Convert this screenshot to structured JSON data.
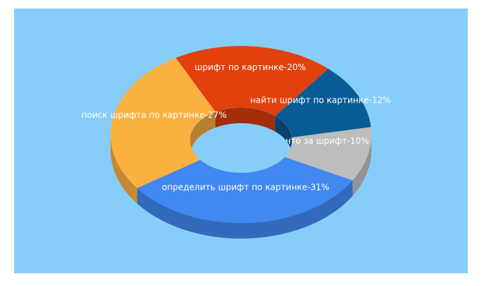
{
  "chart_data": {
    "type": "donut3d",
    "categories": [
      "шрифт по картинке-20%",
      "найти шрифт по картинке-12%",
      "что за шрифт-10%",
      "определить шрифт по картинке-31%",
      "поиск шрифта по картинке-27%"
    ],
    "values": [
      20,
      12,
      10,
      31,
      27
    ],
    "colors": [
      "#e2400c",
      "#085c95",
      "#bdbdbd",
      "#4188f0",
      "#fbb13f"
    ]
  }
}
